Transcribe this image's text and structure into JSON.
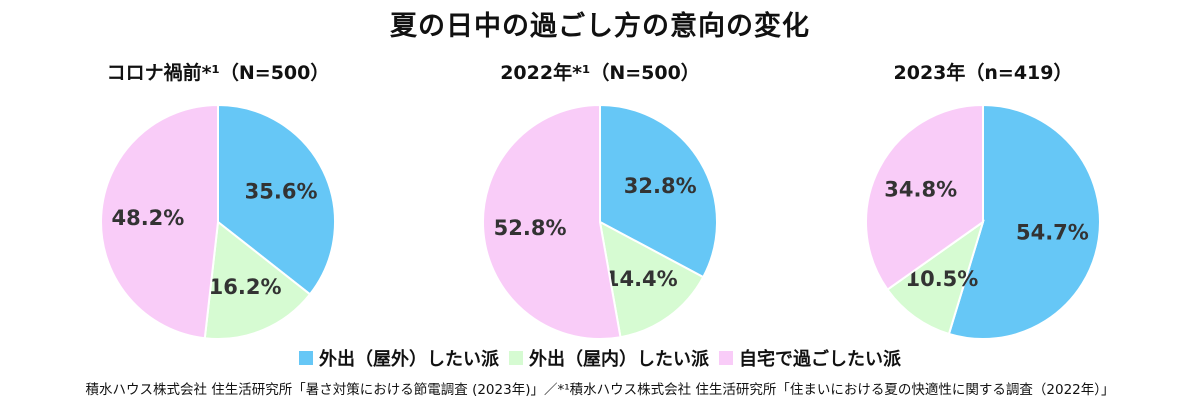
{
  "title": "夏の日中の過ごし方の意向の変化",
  "colors": {
    "outdoor": "#66c7f6",
    "indoor_out": "#d6fbd2",
    "home": "#f9ccf8"
  },
  "legend": [
    {
      "label": "外出（屋外）したい派",
      "color_key": "outdoor"
    },
    {
      "label": "外出（屋内）したい派",
      "color_key": "indoor_out"
    },
    {
      "label": "自宅で過ごしたい派",
      "color_key": "home"
    }
  ],
  "footer": "積水ハウス株式会社 住生活研究所「暑さ対策における節電調査 (2023年)」／*¹積水ハウス株式会社 住生活研究所「住まいにおける夏の快適性に関する調査（2022年）」",
  "chart_data": [
    {
      "type": "pie",
      "title": "コロナ禍前*¹（N=500）",
      "categories": [
        "外出（屋外）したい派",
        "外出（屋内）したい派",
        "自宅で過ごしたい派"
      ],
      "values": [
        35.6,
        16.2,
        48.2
      ],
      "labels": [
        "35.6%",
        "16.2%",
        "48.2%"
      ]
    },
    {
      "type": "pie",
      "title": "2022年*¹（N=500）",
      "categories": [
        "外出（屋外）したい派",
        "外出（屋内）したい派",
        "自宅で過ごしたい派"
      ],
      "values": [
        32.8,
        14.4,
        52.8
      ],
      "labels": [
        "32.8%",
        "14.4%",
        "52.8%"
      ]
    },
    {
      "type": "pie",
      "title": "2023年（n=419）",
      "categories": [
        "外出（屋外）したい派",
        "外出（屋内）したい派",
        "自宅で過ごしたい派"
      ],
      "values": [
        54.7,
        10.5,
        34.8
      ],
      "labels": [
        "54.7%",
        "10.5%",
        "34.8%"
      ]
    }
  ]
}
